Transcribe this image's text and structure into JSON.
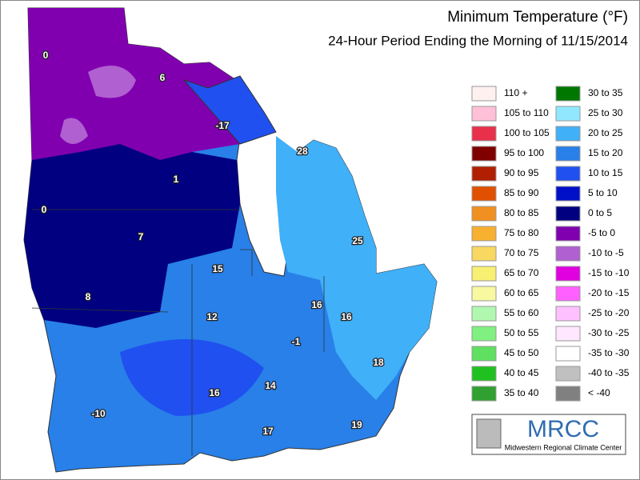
{
  "header": {
    "title": "Minimum Temperature (°F)",
    "subtitle": "24-Hour Period Ending the Morning of 11/15/2014"
  },
  "legend": [
    {
      "label": "110 +",
      "color": "#fff0f0"
    },
    {
      "label": "105 to 110",
      "color": "#ffc0d8"
    },
    {
      "label": "100 to 105",
      "color": "#e8304a"
    },
    {
      "label": "95 to 100",
      "color": "#800000"
    },
    {
      "label": "90 to 95",
      "color": "#b02000"
    },
    {
      "label": "85 to 90",
      "color": "#e05000"
    },
    {
      "label": "80 to 85",
      "color": "#f09020"
    },
    {
      "label": "75 to 80",
      "color": "#f8b030"
    },
    {
      "label": "70 to 75",
      "color": "#f8d860"
    },
    {
      "label": "65 to 70",
      "color": "#f8f070"
    },
    {
      "label": "60 to 65",
      "color": "#f8f8a0"
    },
    {
      "label": "55 to 60",
      "color": "#b0f8b0"
    },
    {
      "label": "50 to 55",
      "color": "#80f080"
    },
    {
      "label": "45 to 50",
      "color": "#60e060"
    },
    {
      "label": "40 to 45",
      "color": "#20c020"
    },
    {
      "label": "35 to 40",
      "color": "#30a030"
    },
    {
      "label": "30 to 35",
      "color": "#007800"
    },
    {
      "label": "25 to 30",
      "color": "#90e8ff"
    },
    {
      "label": "20 to 25",
      "color": "#40b0f8"
    },
    {
      "label": "15 to 20",
      "color": "#2880e8"
    },
    {
      "label": "10 to 15",
      "color": "#2050f0"
    },
    {
      "label": "5 to 10",
      "color": "#0010c8"
    },
    {
      "label": "0 to 5",
      "color": "#000080"
    },
    {
      "label": "-5 to 0",
      "color": "#8000b0"
    },
    {
      "label": "-10 to -5",
      "color": "#b060d0"
    },
    {
      "label": "-15 to -10",
      "color": "#e000e0"
    },
    {
      "label": "-20 to -15",
      "color": "#ff60ff"
    },
    {
      "label": "-25 to -20",
      "color": "#ffc0ff"
    },
    {
      "label": "-30 to -25",
      "color": "#ffe8ff"
    },
    {
      "label": "-35 to -30",
      "color": "#ffffff"
    },
    {
      "label": "-40 to -35",
      "color": "#c0c0c0"
    },
    {
      "label": "< -40",
      "color": "#808080"
    }
  ],
  "stations": [
    0,
    6,
    -17,
    28,
    1,
    0,
    7,
    25,
    15,
    16,
    8,
    12,
    16,
    -1,
    18,
    14,
    16,
    -10,
    19,
    17
  ],
  "logo": {
    "name": "MRCC",
    "full_name": "Midwestern Regional Climate Center"
  }
}
